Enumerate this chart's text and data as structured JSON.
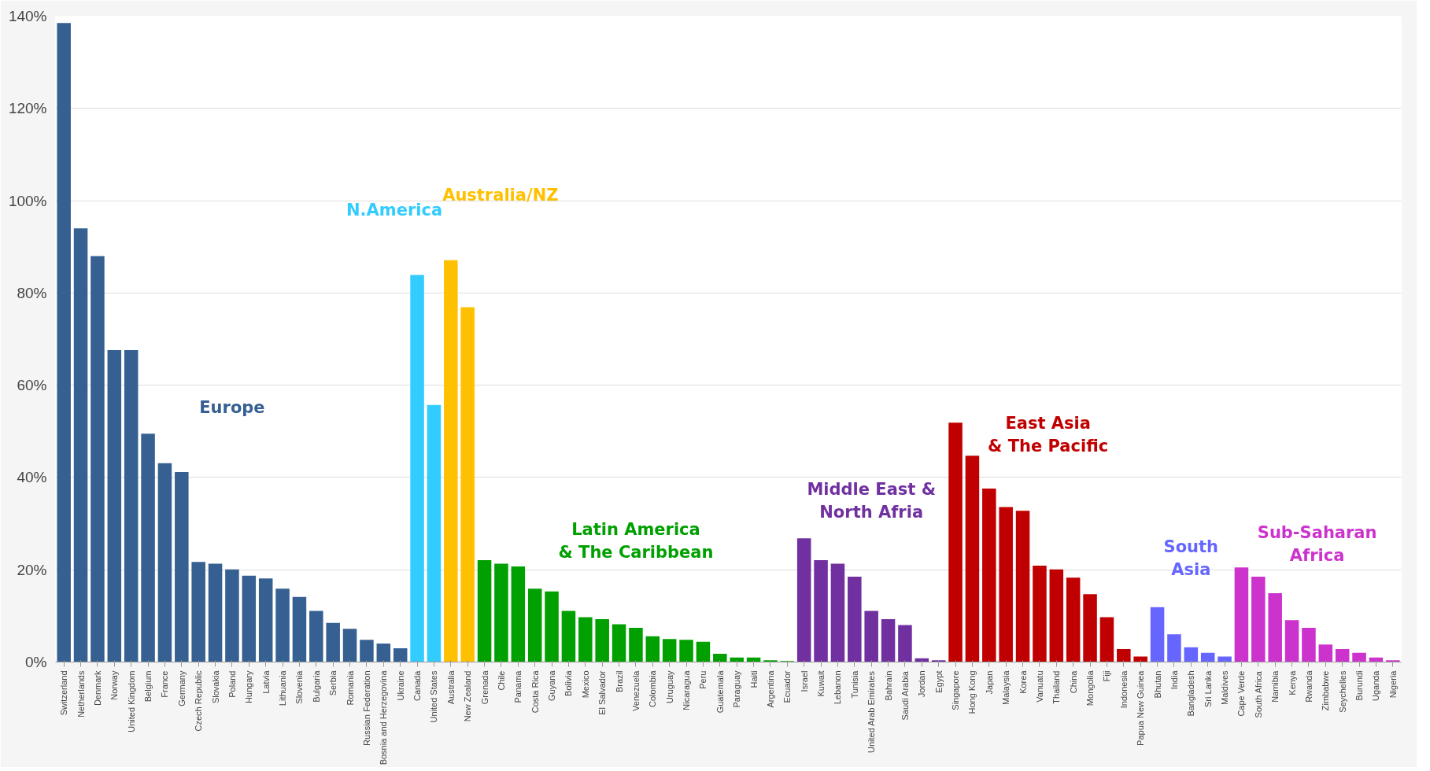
{
  "chart_data": {
    "type": "bar",
    "categories": [
      "Switzerland",
      "Netherlands",
      "Denmark",
      "Norway",
      "United Kingdom",
      "Belgium",
      "France",
      "Germany",
      "Czech Republic",
      "Slovakia",
      "Poland",
      "Hungary",
      "Latvia",
      "Lithuania",
      "Slovenia",
      "Bulgaria",
      "Serbia",
      "Romania",
      "Russian Federation",
      "Bosnia and Herzegovina",
      "Ukraine",
      "Canada",
      "United States",
      "Australia",
      "New Zealand",
      "Grenada",
      "Chile",
      "Panama",
      "Costa Rica",
      "Guyana",
      "Bolivia",
      "Mexico",
      "El Salvador",
      "Brazil",
      "Venezuela",
      "Colombia",
      "Uruguay",
      "Nicaragua",
      "Peru",
      "Guatemala",
      "Paraguay",
      "Haiti",
      "Argentina",
      "Ecuador",
      "Israel",
      "Kuwait",
      "Lebanon",
      "Tunisia",
      "United Arab Emirates",
      "Bahrain",
      "Saudi Arabia",
      "Jordan",
      "Egypt",
      "Singapore",
      "Hong Kong",
      "Japan",
      "Malaysia",
      "Korea",
      "Vanuatu",
      "Thailand",
      "China",
      "Mongolia",
      "Fiji",
      "Indonesia",
      "Papua New Guinea",
      "Bhutan",
      "India",
      "Bangladesh",
      "Sri Lanka",
      "Maldives",
      "Cape Verde",
      "South Africa",
      "Namibia",
      "Kenya",
      "Rwanda",
      "Zimbabwe",
      "Seychelles",
      "Burundi",
      "Uganda",
      "Nigeria"
    ],
    "series": [
      {
        "name": "Europe",
        "color": "#376092",
        "values": [
          138.5,
          94,
          88,
          67.6,
          67.6,
          49.5,
          43.1,
          41.2,
          21.7,
          21.3,
          20.1,
          18.7,
          18.1,
          15.9,
          14.1,
          11.1,
          8.5,
          7.2,
          4.8,
          4.0,
          3.0,
          null,
          null,
          null,
          null,
          null,
          null,
          null,
          null,
          null,
          null,
          null,
          null,
          null,
          null,
          null,
          null,
          null,
          null,
          null,
          null,
          null,
          null,
          null,
          null,
          null,
          null,
          null,
          null,
          null,
          null,
          null,
          null,
          null,
          null,
          null,
          null,
          null,
          null,
          null,
          null,
          null,
          null,
          null,
          null,
          null,
          null,
          null,
          null,
          null,
          null,
          null,
          null,
          null,
          null,
          null,
          null,
          null,
          null,
          null
        ]
      },
      {
        "name": "N.America",
        "color": "#33ccff",
        "values": [
          null,
          null,
          null,
          null,
          null,
          null,
          null,
          null,
          null,
          null,
          null,
          null,
          null,
          null,
          null,
          null,
          null,
          null,
          null,
          null,
          null,
          83.9,
          55.7,
          null,
          null,
          null,
          null,
          null,
          null,
          null,
          null,
          null,
          null,
          null,
          null,
          null,
          null,
          null,
          null,
          null,
          null,
          null,
          null,
          null,
          null,
          null,
          null,
          null,
          null,
          null,
          null,
          null,
          null,
          null,
          null,
          null,
          null,
          null,
          null,
          null,
          null,
          null,
          null,
          null,
          null,
          null,
          null,
          null,
          null,
          null,
          null,
          null,
          null,
          null,
          null,
          null,
          null,
          null,
          null,
          null
        ]
      },
      {
        "name": "Australia/NZ",
        "color": "#ffc000",
        "values": [
          null,
          null,
          null,
          null,
          null,
          null,
          null,
          null,
          null,
          null,
          null,
          null,
          null,
          null,
          null,
          null,
          null,
          null,
          null,
          null,
          null,
          null,
          null,
          87.1,
          76.9,
          null,
          null,
          null,
          null,
          null,
          null,
          null,
          null,
          null,
          null,
          null,
          null,
          null,
          null,
          null,
          null,
          null,
          null,
          null,
          null,
          null,
          null,
          null,
          null,
          null,
          null,
          null,
          null,
          null,
          null,
          null,
          null,
          null,
          null,
          null,
          null,
          null,
          null,
          null,
          null,
          null,
          null,
          null,
          null,
          null,
          null,
          null,
          null,
          null,
          null,
          null,
          null,
          null,
          null,
          null
        ]
      },
      {
        "name": "Latin America\n& The Caribbean",
        "color": "#00a000",
        "values": [
          null,
          null,
          null,
          null,
          null,
          null,
          null,
          null,
          null,
          null,
          null,
          null,
          null,
          null,
          null,
          null,
          null,
          null,
          null,
          null,
          null,
          null,
          null,
          null,
          null,
          22.1,
          21.3,
          20.7,
          15.9,
          15.3,
          11.1,
          9.7,
          9.3,
          8.2,
          7.4,
          5.6,
          5.0,
          4.8,
          4.4,
          1.8,
          1.0,
          1.0,
          0.4,
          0.2,
          null,
          null,
          null,
          null,
          null,
          null,
          null,
          null,
          null,
          null,
          null,
          null,
          null,
          null,
          null,
          null,
          null,
          null,
          null,
          null,
          null,
          null,
          null,
          null,
          null,
          null,
          null,
          null,
          null,
          null,
          null,
          null,
          null,
          null,
          null,
          null
        ]
      },
      {
        "name": "Middle East &\nNorth Afria",
        "color": "#7030a0",
        "values": [
          null,
          null,
          null,
          null,
          null,
          null,
          null,
          null,
          null,
          null,
          null,
          null,
          null,
          null,
          null,
          null,
          null,
          null,
          null,
          null,
          null,
          null,
          null,
          null,
          null,
          null,
          null,
          null,
          null,
          null,
          null,
          null,
          null,
          null,
          null,
          null,
          null,
          null,
          null,
          null,
          null,
          null,
          null,
          null,
          26.8,
          22.1,
          21.3,
          18.5,
          11.1,
          9.3,
          8.0,
          0.8,
          0.4,
          null,
          null,
          null,
          null,
          null,
          null,
          null,
          null,
          null,
          null,
          null,
          null,
          null,
          null,
          null,
          null,
          null,
          null,
          null,
          null,
          null,
          null,
          null,
          null,
          null,
          null,
          null
        ]
      },
      {
        "name": "East Asia\n& The Pacific",
        "color": "#c00000",
        "values": [
          null,
          null,
          null,
          null,
          null,
          null,
          null,
          null,
          null,
          null,
          null,
          null,
          null,
          null,
          null,
          null,
          null,
          null,
          null,
          null,
          null,
          null,
          null,
          null,
          null,
          null,
          null,
          null,
          null,
          null,
          null,
          null,
          null,
          null,
          null,
          null,
          null,
          null,
          null,
          null,
          null,
          null,
          null,
          null,
          null,
          null,
          null,
          null,
          null,
          null,
          null,
          null,
          null,
          51.9,
          44.7,
          37.6,
          33.6,
          32.8,
          20.9,
          20.1,
          18.3,
          14.7,
          9.7,
          2.8,
          1.2,
          null,
          null,
          null,
          null,
          null,
          null,
          null,
          null,
          null,
          null,
          null,
          null,
          null,
          null,
          null
        ]
      },
      {
        "name": "South\nAsia",
        "color": "#6666ff",
        "values": [
          null,
          null,
          null,
          null,
          null,
          null,
          null,
          null,
          null,
          null,
          null,
          null,
          null,
          null,
          null,
          null,
          null,
          null,
          null,
          null,
          null,
          null,
          null,
          null,
          null,
          null,
          null,
          null,
          null,
          null,
          null,
          null,
          null,
          null,
          null,
          null,
          null,
          null,
          null,
          null,
          null,
          null,
          null,
          null,
          null,
          null,
          null,
          null,
          null,
          null,
          null,
          null,
          null,
          null,
          null,
          null,
          null,
          null,
          null,
          null,
          null,
          null,
          null,
          null,
          null,
          11.9,
          6.0,
          3.2,
          2.0,
          1.2,
          null,
          null,
          null,
          null,
          null,
          null,
          null,
          null,
          null,
          null
        ]
      },
      {
        "name": "Sub-Saharan\nAfrica",
        "color": "#cc33cc",
        "values": [
          null,
          null,
          null,
          null,
          null,
          null,
          null,
          null,
          null,
          null,
          null,
          null,
          null,
          null,
          null,
          null,
          null,
          null,
          null,
          null,
          null,
          null,
          null,
          null,
          null,
          null,
          null,
          null,
          null,
          null,
          null,
          null,
          null,
          null,
          null,
          null,
          null,
          null,
          null,
          null,
          null,
          null,
          null,
          null,
          null,
          null,
          null,
          null,
          null,
          null,
          null,
          null,
          null,
          null,
          null,
          null,
          null,
          null,
          null,
          null,
          null,
          null,
          null,
          null,
          null,
          null,
          null,
          null,
          null,
          null,
          20.5,
          18.5,
          14.9,
          9.1,
          7.4,
          3.8,
          2.8,
          2.0,
          1.0,
          0.4
        ]
      }
    ],
    "ylim": [
      0,
      140
    ],
    "yticks": [
      {
        "value": 0,
        "label": "0%"
      },
      {
        "value": 20,
        "label": "20%"
      },
      {
        "value": 40,
        "label": "40%"
      },
      {
        "value": 60,
        "label": "60%"
      },
      {
        "value": 80,
        "label": "80%"
      },
      {
        "value": 100,
        "label": "100%"
      },
      {
        "value": 120,
        "label": "120%"
      },
      {
        "value": 140,
        "label": "140%"
      }
    ],
    "grid": "y"
  }
}
